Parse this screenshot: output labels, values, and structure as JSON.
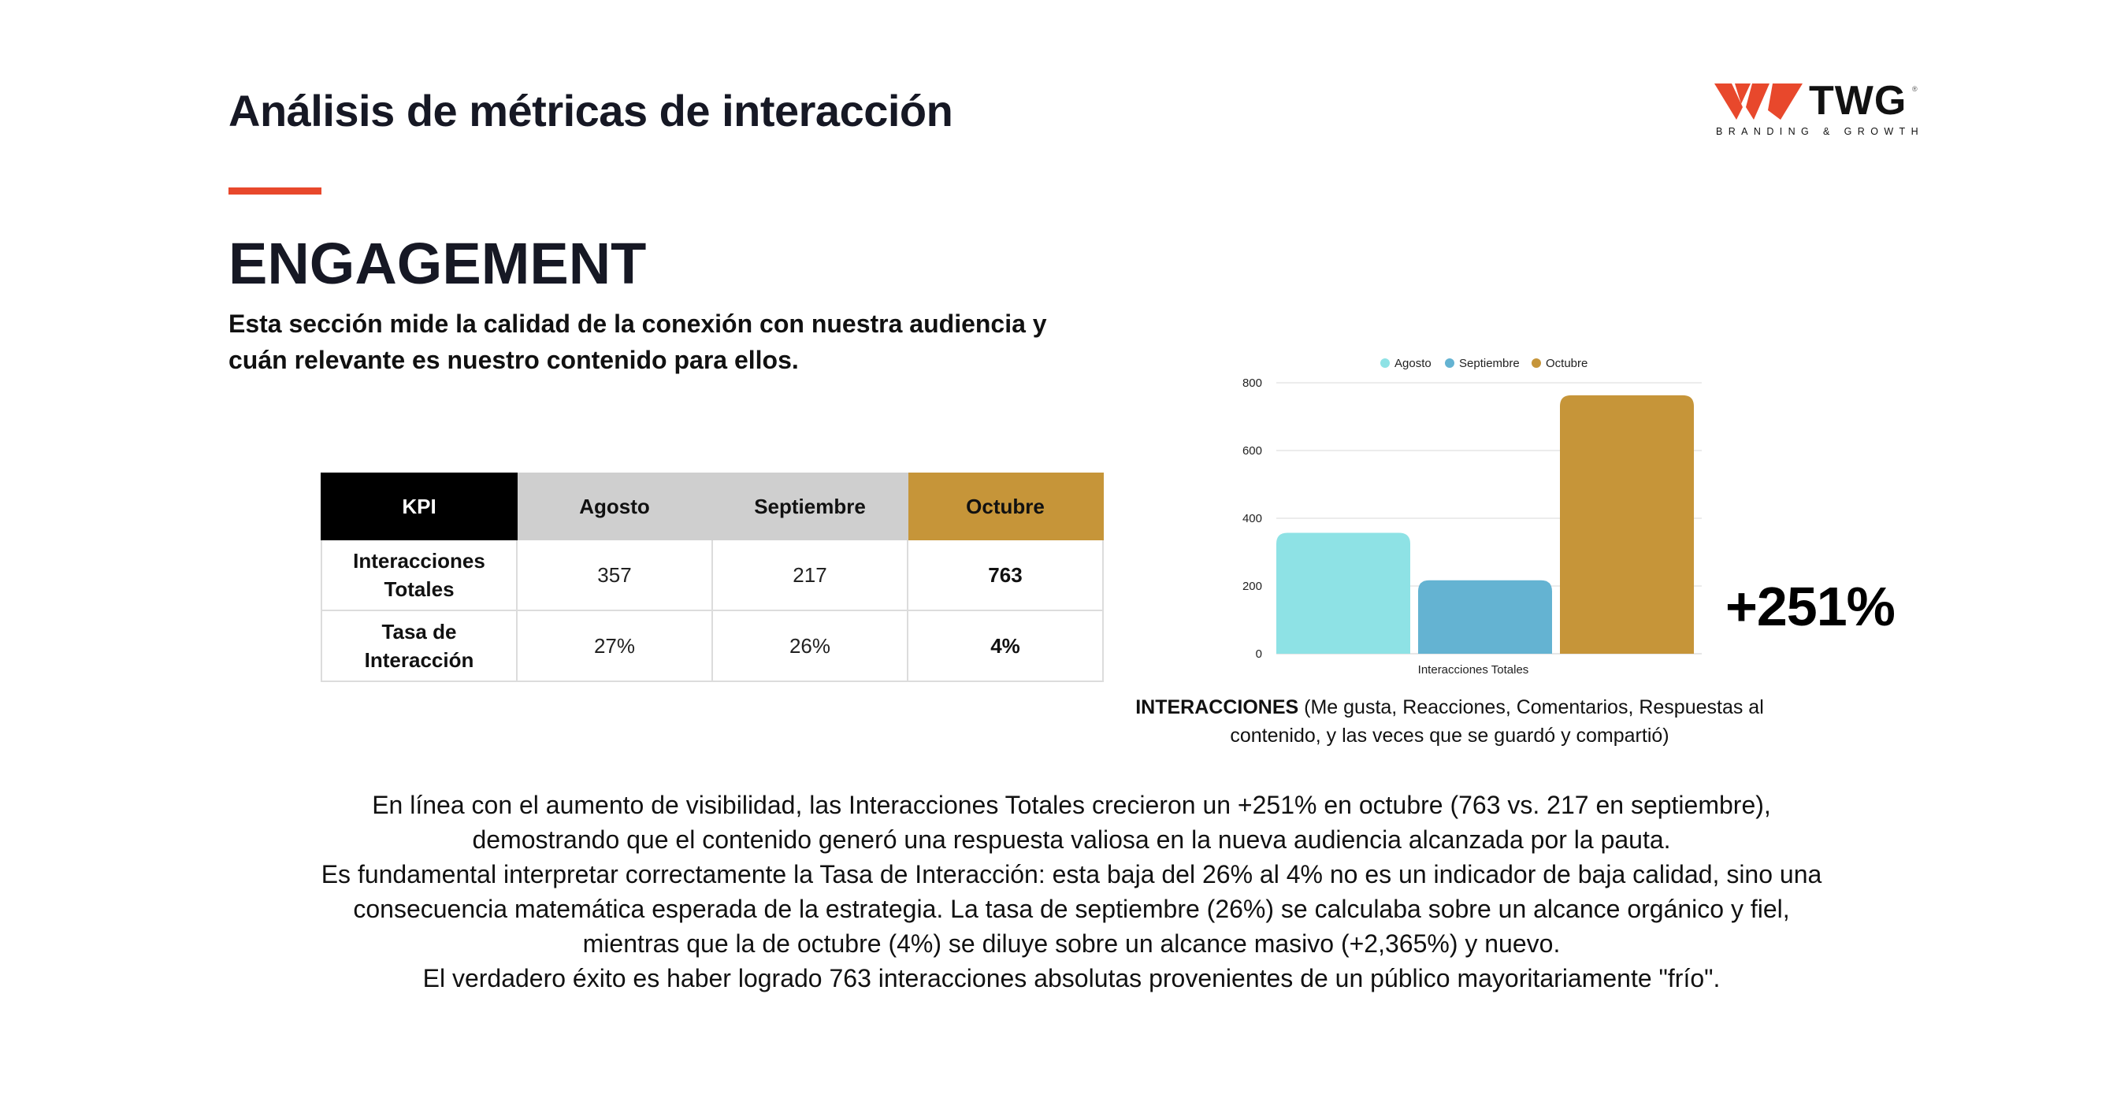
{
  "header": {
    "title": "Análisis de métricas de interacción",
    "accent_color": "#e8482c"
  },
  "logo": {
    "text": "TWG",
    "registered": "®",
    "tagline": "BRANDING & GROWTH",
    "mark_color": "#e8482c"
  },
  "section": {
    "title": "ENGAGEMENT",
    "subtitle": "Esta sección mide la calidad de la conexión con nuestra audiencia y cuán relevante es nuestro contenido para ellos."
  },
  "table": {
    "headers": [
      "KPI",
      "Agosto",
      "Septiembre",
      "Octubre"
    ],
    "rows": [
      {
        "label_line1": "Interacciones",
        "label_line2": "Totales",
        "values": [
          "357",
          "217",
          "763"
        ]
      },
      {
        "label_line1": "Tasa de",
        "label_line2": "Interacción",
        "values": [
          "27%",
          "26%",
          "4%"
        ]
      }
    ],
    "colors": {
      "kpi_header": "#000000",
      "month_header": "#cfcfcf",
      "highlight_header": "#c69539"
    }
  },
  "chart_data": {
    "type": "bar",
    "title": "",
    "categories": [
      "Interacciones Totales"
    ],
    "series": [
      {
        "name": "Agosto",
        "values": [
          357
        ],
        "color": "#8ee2e5"
      },
      {
        "name": "Septiembre",
        "values": [
          217
        ],
        "color": "#64b3d2"
      },
      {
        "name": "Octubre",
        "values": [
          763
        ],
        "color": "#c69539"
      }
    ],
    "xlabel": "",
    "ylabel": "",
    "ylim": [
      0,
      800
    ],
    "yticks": [
      0,
      200,
      400,
      600,
      800
    ],
    "grid": true,
    "legend": "top-center"
  },
  "growth": {
    "label": "+251%"
  },
  "caption": {
    "bold": "INTERACCIONES",
    "rest": " (Me gusta, Reacciones, Comentarios, Respuestas al contenido, y las veces que se guardó y compartió)"
  },
  "body": {
    "lines": [
      "En línea con el aumento de visibilidad, las Interacciones Totales crecieron un +251% en octubre (763 vs. 217 en septiembre),",
      "demostrando que el contenido generó una respuesta valiosa en la nueva audiencia alcanzada por la pauta.",
      "Es fundamental interpretar correctamente la Tasa de Interacción: esta baja del 26% al 4% no es un indicador de baja calidad, sino una",
      "consecuencia matemática esperada de la estrategia. La tasa de septiembre (26%) se calculaba sobre un alcance orgánico y fiel,",
      "mientras que la de octubre (4%) se diluye sobre un alcance masivo (+2,365%) y nuevo.",
      "El verdadero éxito es haber logrado 763 interacciones absolutas provenientes de un público mayoritariamente \"frío\"."
    ]
  }
}
